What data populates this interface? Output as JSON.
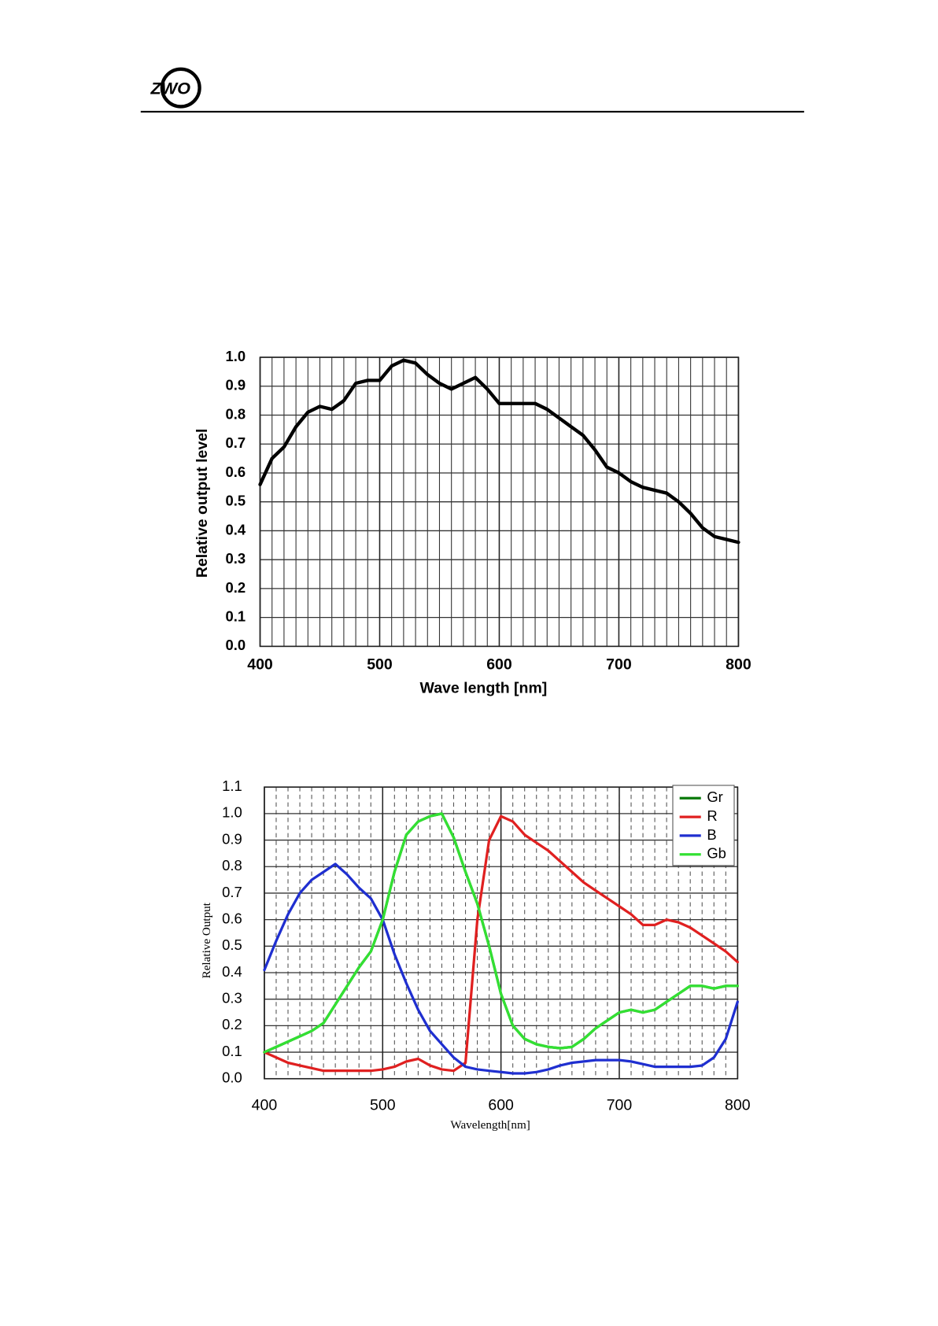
{
  "header": {
    "logo": "ZWO"
  },
  "chart_data": [
    {
      "type": "line",
      "x_label": "Wave length [nm]",
      "y_label": "Relative output level",
      "x": [
        400,
        410,
        420,
        430,
        440,
        450,
        460,
        470,
        480,
        490,
        500,
        510,
        520,
        530,
        540,
        550,
        560,
        570,
        580,
        590,
        600,
        610,
        620,
        630,
        640,
        650,
        660,
        670,
        680,
        690,
        700,
        710,
        720,
        730,
        740,
        750,
        760,
        770,
        780,
        790,
        800
      ],
      "values": [
        0.56,
        0.65,
        0.69,
        0.76,
        0.81,
        0.83,
        0.82,
        0.85,
        0.91,
        0.92,
        0.92,
        0.97,
        0.99,
        0.98,
        0.94,
        0.91,
        0.89,
        0.91,
        0.93,
        0.89,
        0.84,
        0.84,
        0.84,
        0.84,
        0.82,
        0.79,
        0.76,
        0.73,
        0.68,
        0.62,
        0.6,
        0.57,
        0.55,
        0.54,
        0.53,
        0.5,
        0.46,
        0.41,
        0.38,
        0.37,
        0.36
      ],
      "color": "#000000",
      "xlim": [
        400,
        800
      ],
      "xticks": [
        400,
        500,
        600,
        700,
        800
      ],
      "ylim": [
        0,
        1
      ],
      "yticks": [
        {
          "value": 0,
          "label": "0.0"
        },
        0.1,
        0.2,
        0.3,
        0.4,
        0.5,
        0.6,
        0.7,
        0.8,
        0.9,
        {
          "value": 1,
          "label": "1.0"
        }
      ],
      "grid": true
    },
    {
      "type": "line",
      "x_label": "Wavelength[nm]",
      "y_label": "Relative Output",
      "x": [
        400,
        410,
        420,
        430,
        440,
        450,
        460,
        470,
        480,
        490,
        500,
        510,
        520,
        530,
        540,
        550,
        560,
        570,
        580,
        590,
        600,
        610,
        620,
        630,
        640,
        650,
        660,
        670,
        680,
        690,
        700,
        710,
        720,
        730,
        740,
        750,
        760,
        770,
        780,
        790,
        800
      ],
      "series": [
        {
          "name": "Gr",
          "color": "#0a7a0a",
          "values": [
            0.1,
            0.12,
            0.14,
            0.16,
            0.18,
            0.21,
            0.28,
            0.35,
            0.42,
            0.48,
            0.6,
            0.78,
            0.92,
            0.97,
            0.99,
            1.0,
            0.91,
            0.78,
            0.66,
            0.5,
            0.32,
            0.2,
            0.15,
            0.13,
            0.12,
            0.115,
            0.12,
            0.15,
            0.19,
            0.22,
            0.25,
            0.26,
            0.25,
            0.26,
            0.29,
            0.32,
            0.35,
            0.35,
            0.34,
            0.35,
            0.35
          ]
        },
        {
          "name": "R",
          "color": "#e02020",
          "values": [
            0.1,
            0.08,
            0.06,
            0.05,
            0.04,
            0.03,
            0.03,
            0.03,
            0.03,
            0.03,
            0.035,
            0.045,
            0.065,
            0.075,
            0.05,
            0.035,
            0.03,
            0.06,
            0.6,
            0.9,
            0.99,
            0.97,
            0.92,
            0.89,
            0.86,
            0.82,
            0.78,
            0.74,
            0.71,
            0.68,
            0.65,
            0.62,
            0.58,
            0.58,
            0.6,
            0.59,
            0.57,
            0.54,
            0.51,
            0.48,
            0.44
          ]
        },
        {
          "name": "B",
          "color": "#1f2fd0",
          "values": [
            0.41,
            0.52,
            0.62,
            0.7,
            0.75,
            0.78,
            0.81,
            0.77,
            0.72,
            0.68,
            0.6,
            0.47,
            0.36,
            0.26,
            0.18,
            0.13,
            0.08,
            0.045,
            0.035,
            0.03,
            0.025,
            0.02,
            0.02,
            0.025,
            0.035,
            0.05,
            0.06,
            0.065,
            0.07,
            0.07,
            0.07,
            0.065,
            0.055,
            0.045,
            0.045,
            0.045,
            0.045,
            0.05,
            0.08,
            0.15,
            0.29
          ]
        },
        {
          "name": "Gb",
          "color": "#33e033",
          "values": [
            0.1,
            0.12,
            0.14,
            0.16,
            0.18,
            0.21,
            0.28,
            0.35,
            0.42,
            0.48,
            0.6,
            0.78,
            0.92,
            0.97,
            0.99,
            1.0,
            0.91,
            0.78,
            0.66,
            0.5,
            0.32,
            0.2,
            0.15,
            0.13,
            0.12,
            0.115,
            0.12,
            0.15,
            0.19,
            0.22,
            0.25,
            0.26,
            0.25,
            0.26,
            0.29,
            0.32,
            0.35,
            0.35,
            0.34,
            0.35,
            0.35
          ]
        }
      ],
      "xlim": [
        400,
        800
      ],
      "xticks": [
        400,
        500,
        600,
        700,
        800
      ],
      "ylim": [
        0,
        1.1
      ],
      "yticks": [
        {
          "value": 0,
          "label": "0.0"
        },
        0.1,
        0.2,
        0.3,
        0.4,
        0.5,
        0.6,
        0.7,
        0.8,
        0.9,
        {
          "value": 1,
          "label": "1.0"
        },
        1.1
      ],
      "grid": true,
      "legend": "top-right"
    }
  ]
}
